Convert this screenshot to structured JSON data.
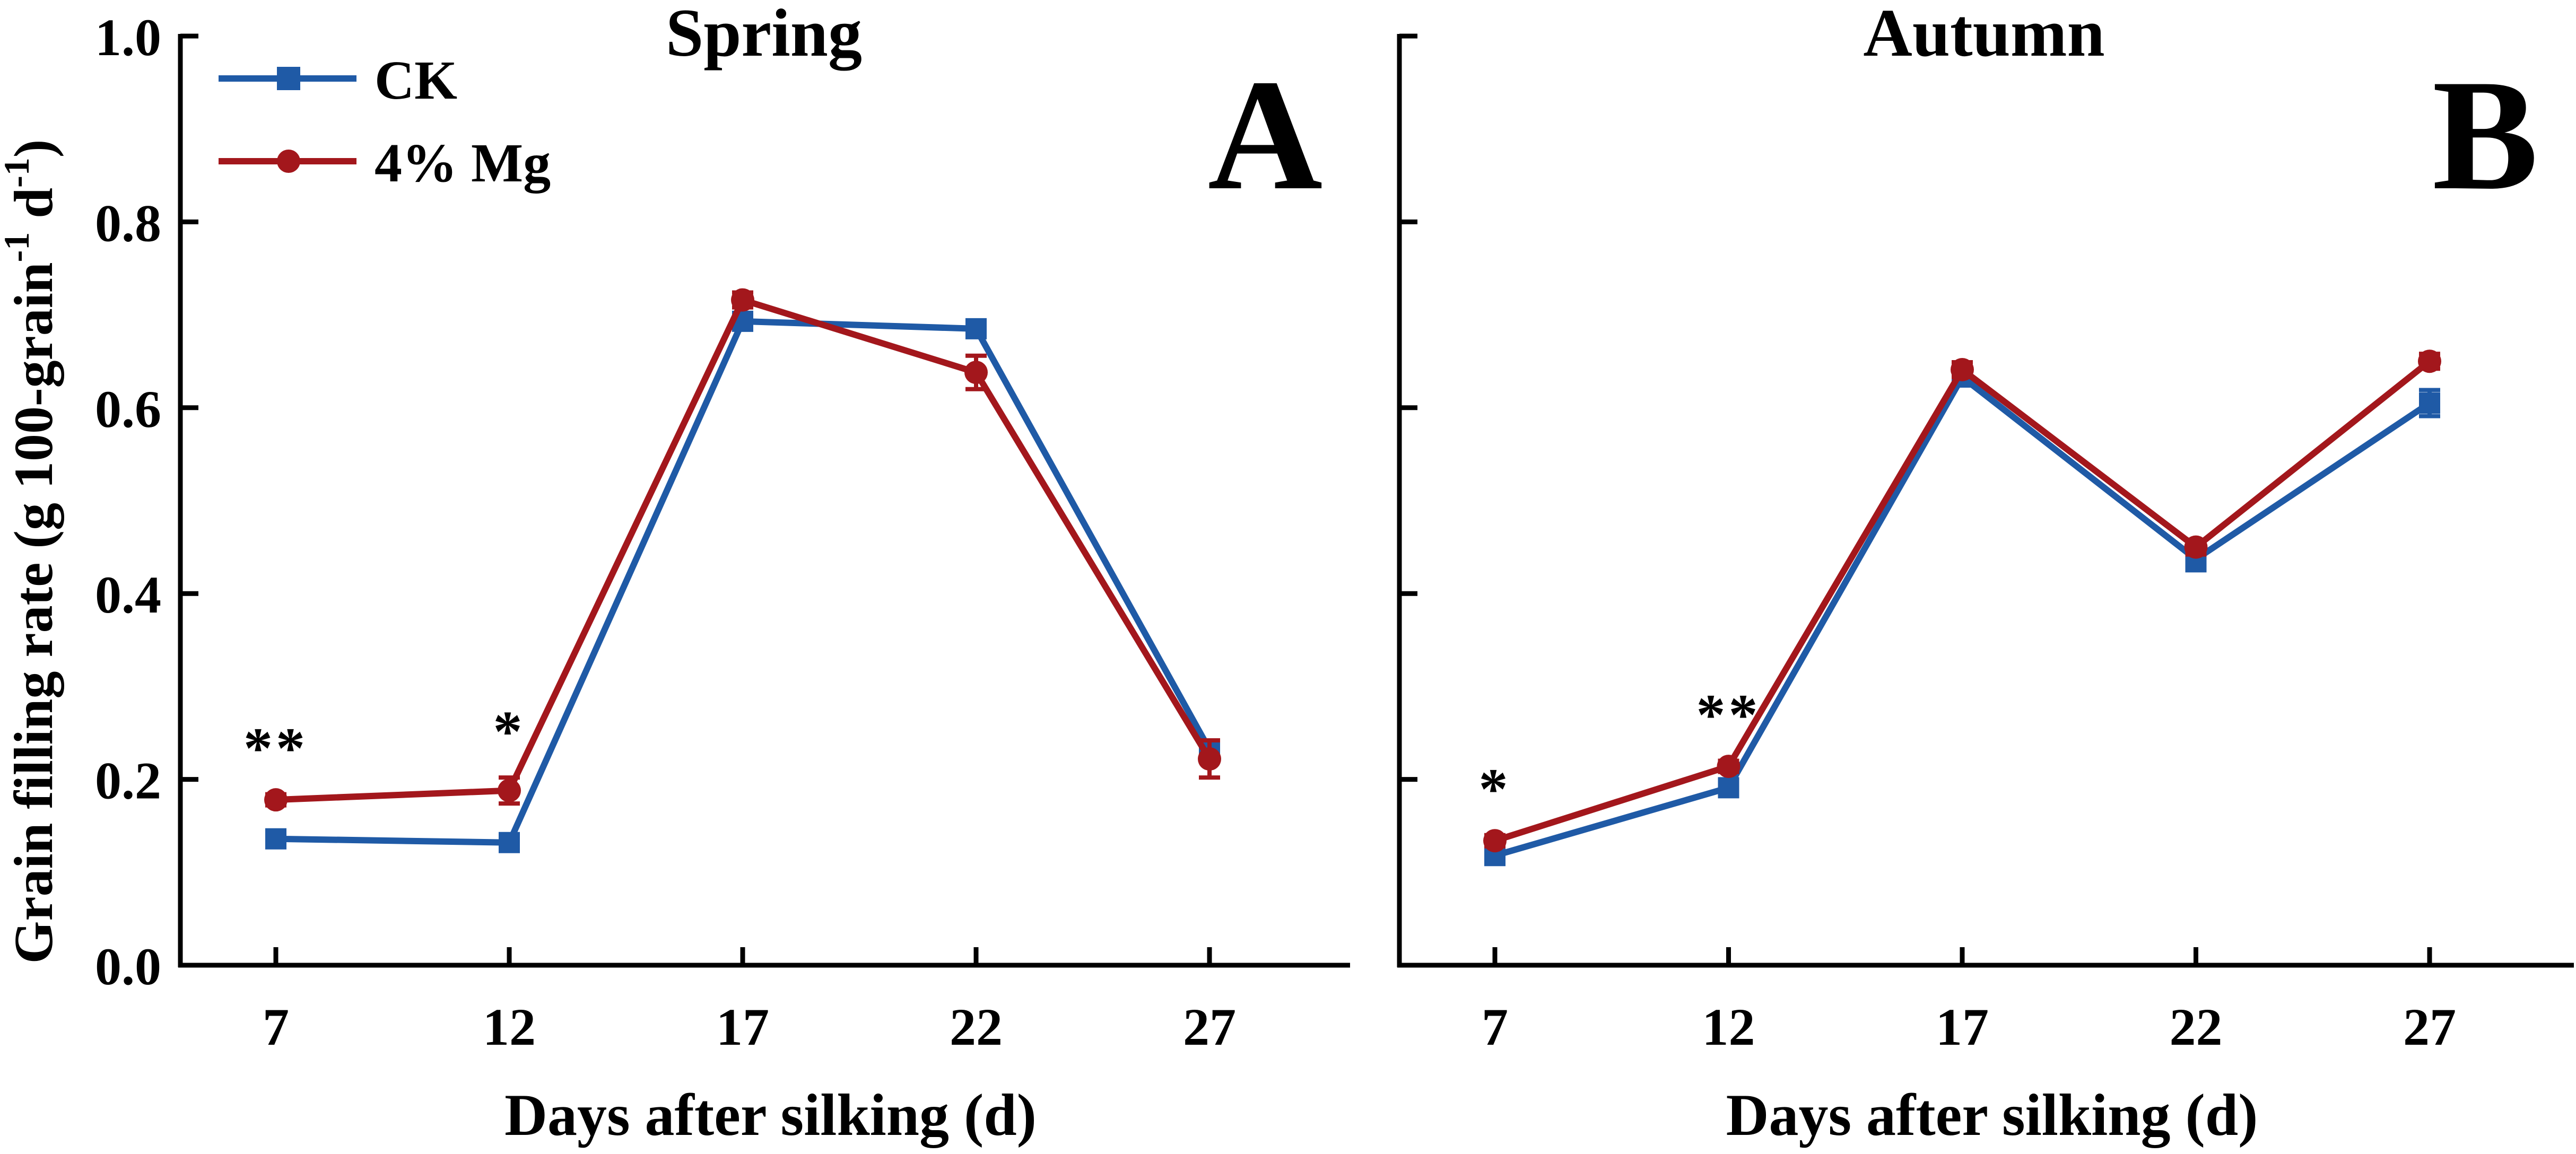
{
  "colors": {
    "ck": "#1f5aa6",
    "mg": "#a3171c",
    "axis": "#000000"
  },
  "ylabel_text": "Grain filling rate (g 100-grain",
  "ylabel_sup1": "-1",
  "ylabel_mid": " d",
  "ylabel_sup2": "-1",
  "ylabel_end": ")",
  "xlabel": "Days after silking (d)",
  "legend": {
    "ck": "CK",
    "mg": "4% Mg"
  },
  "chart_data": [
    {
      "type": "line",
      "title": "Spring",
      "panel_letter": "A",
      "xlabel": "Days after silking (d)",
      "ylabel": "Grain filling rate (g 100-grain-1 d-1)",
      "x": [
        7,
        12,
        17,
        22,
        27
      ],
      "x_tick_labels": [
        "7",
        "12",
        "17",
        "22",
        "27"
      ],
      "ylim": [
        0,
        1.0
      ],
      "y_ticks": [
        0.0,
        0.2,
        0.4,
        0.6,
        0.8,
        1.0
      ],
      "y_tick_labels": [
        "0.0",
        "0.2",
        "0.4",
        "0.6",
        "0.8",
        "1.0"
      ],
      "series": [
        {
          "name": "CK",
          "marker": "square",
          "values": [
            0.136,
            0.132,
            0.693,
            0.685,
            0.232
          ],
          "errors": [
            0.006,
            0.006,
            0.008,
            0.006,
            0.01
          ]
        },
        {
          "name": "4% Mg",
          "marker": "circle",
          "values": [
            0.178,
            0.188,
            0.716,
            0.638,
            0.222
          ],
          "errors": [
            0.006,
            0.014,
            0.008,
            0.018,
            0.02
          ]
        }
      ],
      "annotations": [
        {
          "x": 7,
          "text": "**"
        },
        {
          "x": 12,
          "text": "*"
        }
      ]
    },
    {
      "type": "line",
      "title": "Autumn",
      "panel_letter": "B",
      "xlabel": "Days after silking (d)",
      "x": [
        7,
        12,
        17,
        22,
        27
      ],
      "x_tick_labels": [
        "7",
        "12",
        "17",
        "22",
        "27"
      ],
      "ylim": [
        0,
        1.0
      ],
      "y_ticks": [
        0.0,
        0.2,
        0.4,
        0.6,
        0.8,
        1.0
      ],
      "series": [
        {
          "name": "CK",
          "marker": "square",
          "values": [
            0.118,
            0.191,
            0.633,
            0.437,
            0.605
          ],
          "errors": [
            0.006,
            0.006,
            0.008,
            0.012,
            0.014
          ]
        },
        {
          "name": "4% Mg",
          "marker": "circle",
          "values": [
            0.134,
            0.214,
            0.641,
            0.45,
            0.65
          ],
          "errors": [
            0.006,
            0.006,
            0.008,
            0.008,
            0.008
          ]
        }
      ],
      "annotations": [
        {
          "x": 7,
          "text": "*"
        },
        {
          "x": 12,
          "text": "**"
        }
      ]
    }
  ]
}
